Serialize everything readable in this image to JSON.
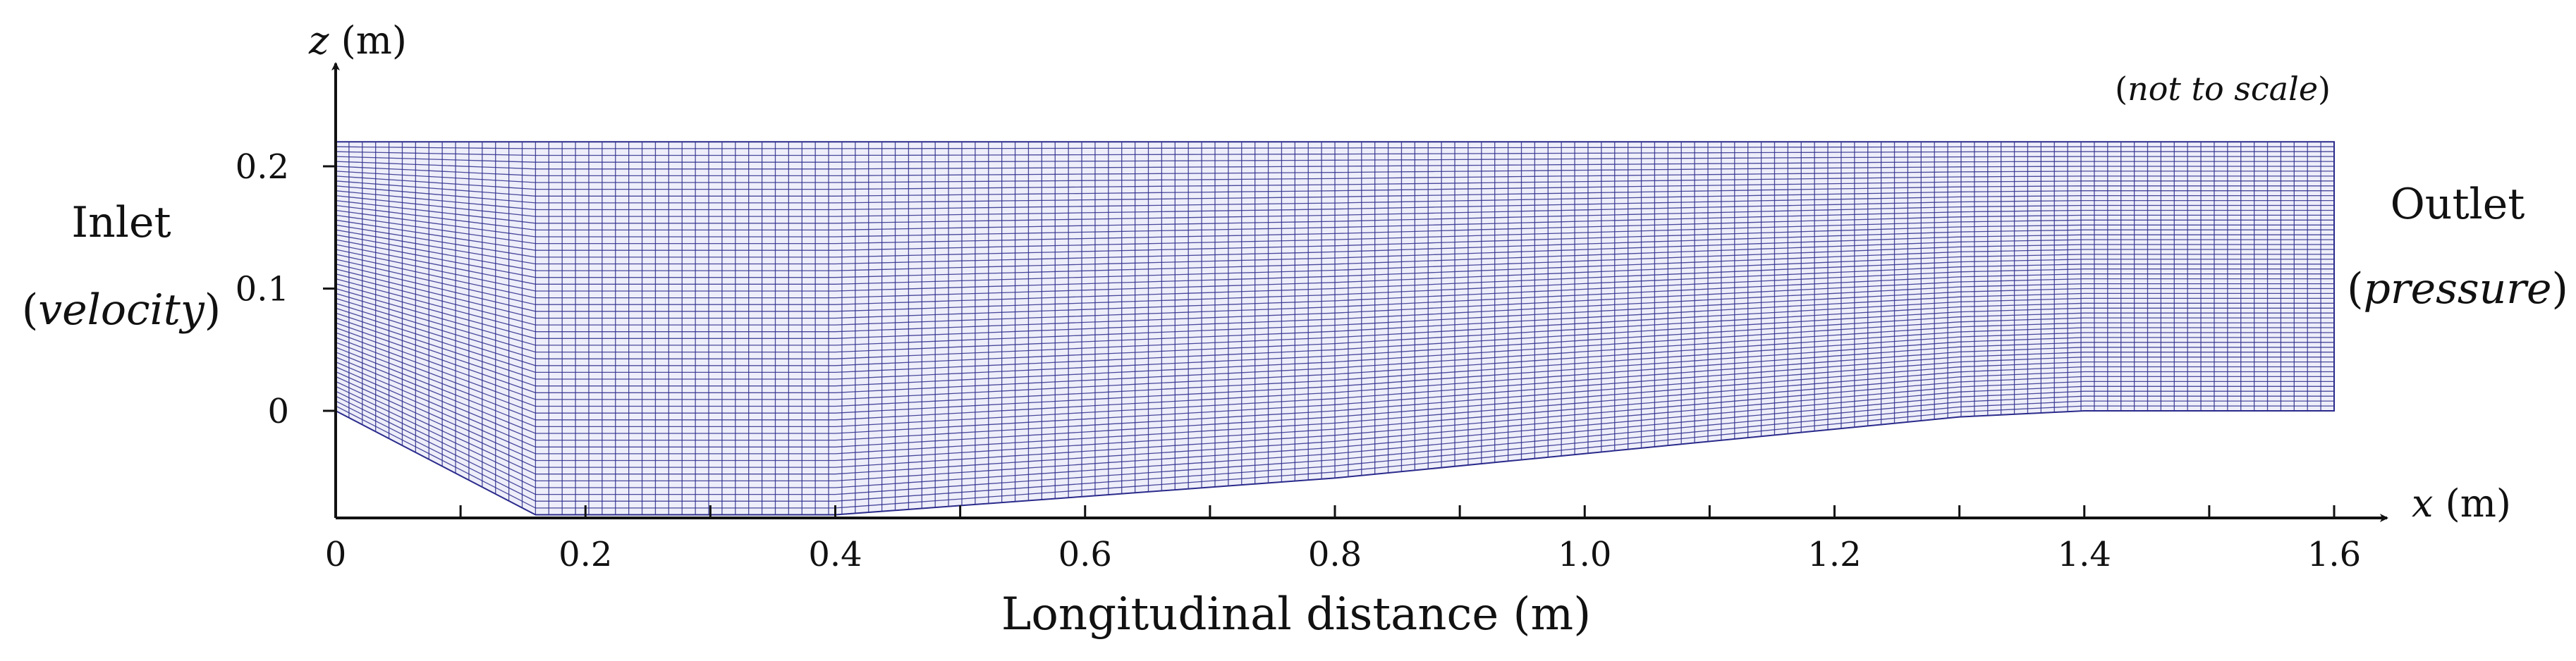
{
  "figure": {
    "note": "(not to scale)",
    "note_parts": {
      "open": "(",
      "italic": "not to scale",
      "close": ")"
    },
    "inlet": {
      "title": "Inlet",
      "subtitle_open": "(",
      "subtitle_italic": "velocity",
      "subtitle_close": ")"
    },
    "outlet": {
      "title": "Outlet",
      "subtitle_open": "(",
      "subtitle_italic": "pressure",
      "subtitle_close": ")"
    },
    "x_axis": {
      "symbol": "x",
      "unit": "(m)",
      "title": "Longitudinal distance (m)",
      "ticks": [
        "0",
        "0.2",
        "0.4",
        "0.6",
        "0.8",
        "1.0",
        "1.2",
        "1.4",
        "1.6"
      ],
      "tick_values": [
        0,
        0.2,
        0.4,
        0.6,
        0.8,
        1.0,
        1.2,
        1.4,
        1.6
      ],
      "minor_tick_values": [
        0.1,
        0.3,
        0.5,
        0.7,
        0.9,
        1.1,
        1.3,
        1.5
      ],
      "range": [
        0,
        1.6
      ]
    },
    "z_axis": {
      "symbol": "z",
      "unit": "(m)",
      "ticks": [
        "0",
        "0.1",
        "0.2"
      ],
      "tick_values": [
        0,
        0.1,
        0.2
      ]
    },
    "domain_shape": {
      "top_z": 0.22,
      "outlet_bottom_z": 0.0,
      "bottom_profile": [
        {
          "x": 0.0,
          "z": 0.0
        },
        {
          "x": 0.16,
          "z": -0.085
        },
        {
          "x": 0.4,
          "z": -0.085
        },
        {
          "x": 0.6,
          "z": -0.07
        },
        {
          "x": 0.8,
          "z": -0.055
        },
        {
          "x": 1.0,
          "z": -0.035
        },
        {
          "x": 1.2,
          "z": -0.015
        },
        {
          "x": 1.3,
          "z": -0.005
        },
        {
          "x": 1.4,
          "z": 0.0
        },
        {
          "x": 1.6,
          "z": 0.0
        }
      ]
    },
    "mesh": {
      "color": "#2b2b8c",
      "columns": 150,
      "rows": 55,
      "fill": "#eeeefa"
    }
  }
}
